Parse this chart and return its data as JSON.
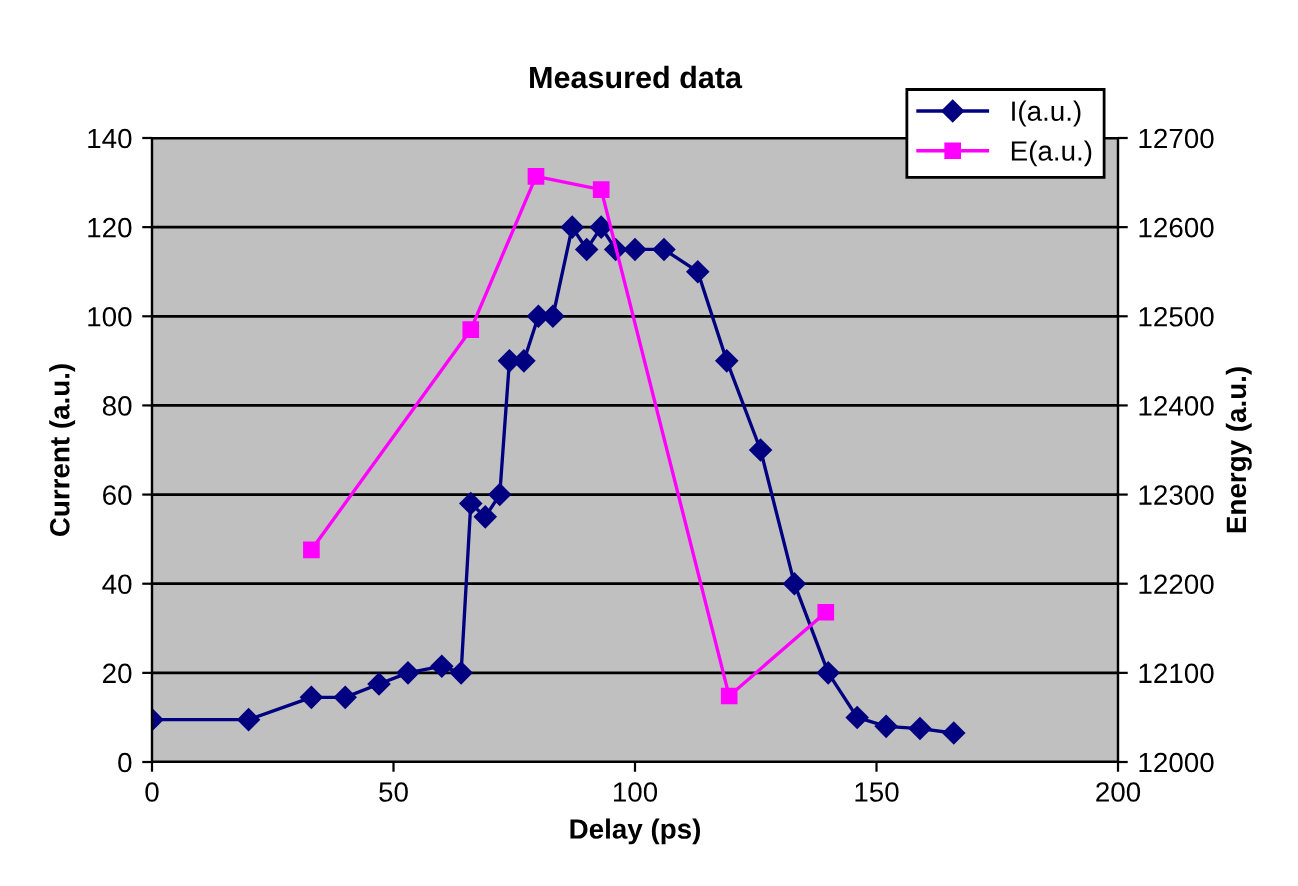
{
  "chart_data": {
    "type": "line",
    "title": "Measured data",
    "xlabel": "Delay (ps)",
    "ylabel": "Current (a.u.)",
    "y2label": "Energy (a.u.)",
    "xlim": [
      0,
      200
    ],
    "xticks": [
      0,
      50,
      100,
      150,
      200
    ],
    "ylim": [
      0,
      140
    ],
    "yticks": [
      0,
      20,
      40,
      60,
      80,
      100,
      120,
      140
    ],
    "y2lim": [
      12000,
      12700
    ],
    "y2ticks": [
      12000,
      12100,
      12200,
      12300,
      12400,
      12500,
      12600,
      12700
    ],
    "grid": "y",
    "legend": "top right",
    "series": [
      {
        "name": "I(a.u.)",
        "color": "#000080",
        "marker": "diamond",
        "x": [
          0,
          20,
          33,
          40,
          47,
          53,
          60,
          64,
          66,
          69,
          72,
          74,
          77,
          80,
          83,
          87,
          90,
          93,
          96,
          100,
          106,
          113,
          119,
          126,
          133,
          140,
          146,
          152,
          159,
          166
        ],
        "values": [
          9.5,
          9.5,
          14.5,
          14.5,
          17.5,
          20,
          21.5,
          20,
          58,
          55,
          60,
          90,
          90,
          100,
          100,
          120,
          115,
          120,
          115,
          115,
          115,
          110,
          90,
          70,
          40,
          20,
          10,
          8,
          7.5,
          6.5
        ]
      },
      {
        "name": "E(a.u.)",
        "color": "#ff00ff",
        "marker": "square",
        "axis": "y2",
        "x": [
          33,
          66,
          79.5,
          93,
          119.5,
          139.5
        ],
        "values": [
          12238,
          12485,
          12657,
          12642,
          12074,
          12168
        ]
      }
    ]
  }
}
